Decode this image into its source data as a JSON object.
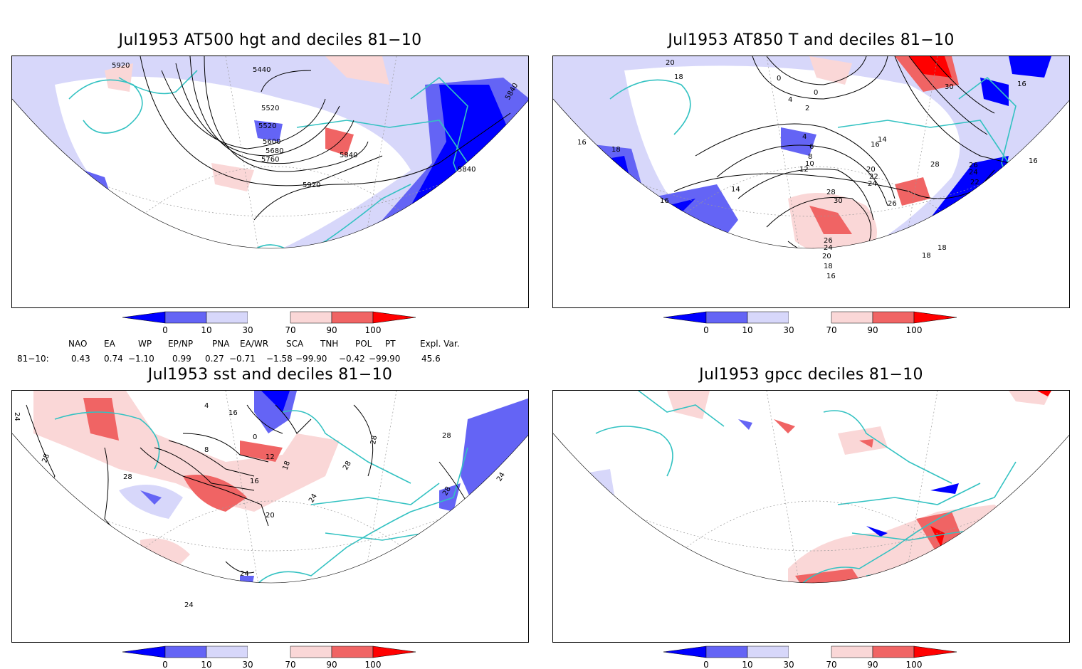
{
  "panels": [
    {
      "title": "Jul1953 AT500 hgt and deciles 81−10",
      "contour_labels": [
        "5920",
        "5440",
        "5520",
        "5520",
        "5600",
        "5680",
        "5760",
        "5840",
        "5840",
        "5840",
        "5920"
      ]
    },
    {
      "title": "Jul1953 AT850 T and deciles 81−10",
      "contour_labels": [
        "20",
        "18",
        "0",
        "4",
        "0",
        "2",
        "16",
        "18",
        "16",
        "4",
        "6",
        "8",
        "10",
        "12",
        "14",
        "16",
        "14",
        "28",
        "26",
        "24",
        "22",
        "20",
        "22",
        "24",
        "30",
        "26",
        "28",
        "26",
        "24",
        "20",
        "18",
        "16",
        "18",
        "18",
        "30",
        "16",
        "16"
      ]
    },
    {
      "title": "Jul1953 sst and deciles 81−10",
      "contour_labels": [
        "24",
        "28",
        "28",
        "4",
        "0",
        "8",
        "12",
        "16",
        "20",
        "24",
        "24",
        "28",
        "28",
        "28",
        "24",
        "28",
        "16",
        "18",
        "24"
      ]
    },
    {
      "title": "Jul1953 gpcc deciles 81−10",
      "contour_labels": []
    }
  ],
  "colorbar": {
    "ticks": [
      "0",
      "10",
      "30",
      "70",
      "90",
      "100"
    ],
    "colors": [
      "#0000ff",
      "#6464f5",
      "#d7d7fa",
      "#ffffff",
      "#fad7d7",
      "#f06464",
      "#ff0000"
    ]
  },
  "indices": {
    "names": [
      "NAO",
      "EA",
      "WP",
      "EP/NP",
      "PNA",
      "EA/WR",
      "SCA",
      "TNH",
      "POL",
      "PT",
      "Expl. Var."
    ],
    "row_label": "81−10:",
    "values": [
      "0.43",
      "0.74",
      "−1.10",
      "0.99",
      "0.27",
      "−0.71",
      "−1.58",
      "−99.90",
      "−0.42",
      "−99.90",
      "45.6"
    ]
  },
  "colors": {
    "coast": "#33c2c2",
    "land_shade_blue": "#d7d7fa",
    "strong_blue": "#0000ff"
  }
}
